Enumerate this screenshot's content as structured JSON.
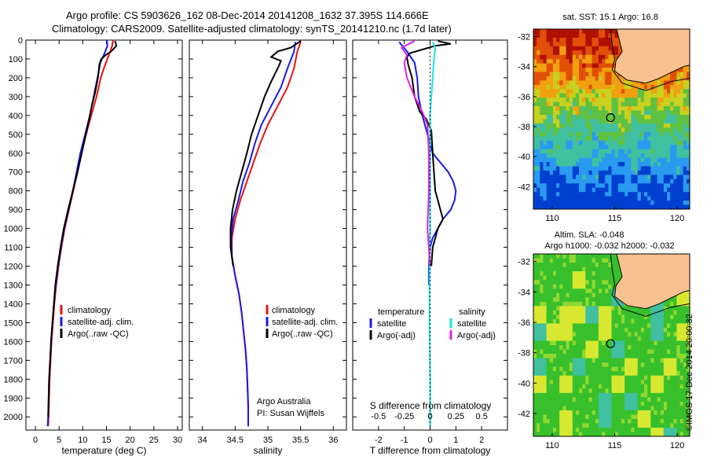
{
  "header": {
    "line1": "Argo profile: CS 5903626_162 08-Dec-2014 20141208_1632 37.395S 114.666E",
    "line2": "Climatology: CARS2009. Satellite-adjusted climatology: synTS_20141210.nc (1.7d later)"
  },
  "stamp": "©IMOS 17-Dec-2014 20:00:32",
  "colors": {
    "climatology": "#e81010",
    "satellite": "#1a1ae6",
    "argo": "#000000",
    "sat_salinity": "#18e6e6",
    "argo_salinity": "#e020e0",
    "land": "#f7c28f"
  },
  "chart_data": [
    {
      "type": "line",
      "id": "temperature",
      "xlabel": "temperature (deg C)",
      "xlim": [
        -2,
        31
      ],
      "ylim": [
        2070,
        0
      ],
      "xticks": [
        "0",
        "5",
        "10",
        "15",
        "20",
        "25",
        "30"
      ],
      "yticks": [
        "0",
        "100",
        "200",
        "300",
        "400",
        "500",
        "600",
        "700",
        "800",
        "900",
        "1000",
        "1100",
        "1200",
        "1300",
        "1400",
        "1500",
        "1600",
        "1700",
        "1800",
        "1900",
        "2000"
      ],
      "legend": [
        "climatology",
        "satellite-adj. clim.",
        "Argo(..raw -QC)"
      ],
      "series": [
        {
          "name": "climatology",
          "color": "climatology",
          "points": [
            [
              16.4,
              0
            ],
            [
              16.2,
              30
            ],
            [
              15.8,
              60
            ],
            [
              15.2,
              100
            ],
            [
              14.6,
              140
            ],
            [
              13.8,
              200
            ],
            [
              12.9,
              300
            ],
            [
              11.8,
              400
            ],
            [
              10.7,
              500
            ],
            [
              9.7,
              600
            ],
            [
              8.9,
              700
            ],
            [
              8.0,
              800
            ],
            [
              7.1,
              900
            ],
            [
              6.2,
              1000
            ],
            [
              5.5,
              1100
            ],
            [
              4.9,
              1200
            ],
            [
              4.4,
              1300
            ],
            [
              4.0,
              1400
            ],
            [
              3.7,
              1500
            ],
            [
              3.4,
              1600
            ],
            [
              3.2,
              1700
            ],
            [
              3.0,
              1800
            ],
            [
              2.9,
              1900
            ],
            [
              2.8,
              2000
            ],
            [
              2.7,
              2050
            ]
          ]
        },
        {
          "name": "satellite-adj. clim.",
          "color": "satellite",
          "points": [
            [
              15.1,
              0
            ],
            [
              15.2,
              30
            ],
            [
              14.6,
              70
            ],
            [
              13.7,
              120
            ],
            [
              13.1,
              200
            ],
            [
              12.3,
              300
            ],
            [
              11.5,
              400
            ],
            [
              10.5,
              500
            ],
            [
              9.5,
              600
            ],
            [
              8.7,
              700
            ],
            [
              7.9,
              800
            ],
            [
              7.0,
              900
            ],
            [
              6.1,
              1000
            ],
            [
              5.4,
              1100
            ],
            [
              4.8,
              1200
            ],
            [
              4.3,
              1300
            ],
            [
              3.9,
              1400
            ],
            [
              3.6,
              1500
            ],
            [
              3.3,
              1600
            ],
            [
              3.1,
              1700
            ],
            [
              2.9,
              1800
            ],
            [
              2.8,
              1900
            ],
            [
              2.7,
              2000
            ],
            [
              2.6,
              2050
            ]
          ]
        },
        {
          "name": "Argo(..raw -QC)",
          "color": "argo",
          "points": [
            [
              16.8,
              5
            ],
            [
              17.1,
              30
            ],
            [
              16.0,
              60
            ],
            [
              14.8,
              80
            ],
            [
              13.9,
              100
            ],
            [
              13.5,
              130
            ],
            [
              13.2,
              200
            ],
            [
              12.6,
              280
            ],
            [
              11.9,
              350
            ],
            [
              11.1,
              450
            ],
            [
              10.3,
              540
            ],
            [
              9.6,
              620
            ],
            [
              8.9,
              700
            ],
            [
              7.9,
              800
            ],
            [
              6.9,
              900
            ],
            [
              6.0,
              1000
            ],
            [
              5.3,
              1100
            ],
            [
              4.7,
              1200
            ],
            [
              4.2,
              1300
            ],
            [
              3.9,
              1400
            ],
            [
              3.6,
              1500
            ],
            [
              3.3,
              1600
            ],
            [
              3.1,
              1700
            ],
            [
              2.9,
              1800
            ],
            [
              2.8,
              1900
            ],
            [
              2.7,
              2000
            ]
          ]
        }
      ]
    },
    {
      "type": "line",
      "id": "salinity",
      "xlabel": "salinity",
      "xlim": [
        33.8,
        36.2
      ],
      "ylim": [
        2070,
        0
      ],
      "xticks": [
        "34",
        "34.5",
        "35",
        "35.5",
        "36"
      ],
      "legend": [
        "climatology",
        "satellite-adj. clim.",
        "Argo(..raw -QC)"
      ],
      "annotation": [
        "Argo Australia",
        "PI: Susan Wijffels"
      ],
      "series": [
        {
          "name": "climatology",
          "color": "climatology",
          "points": [
            [
              35.5,
              10
            ],
            [
              35.45,
              60
            ],
            [
              35.4,
              150
            ],
            [
              35.3,
              250
            ],
            [
              35.15,
              350
            ],
            [
              35.0,
              450
            ],
            [
              34.88,
              550
            ],
            [
              34.78,
              650
            ],
            [
              34.68,
              750
            ],
            [
              34.58,
              850
            ],
            [
              34.5,
              950
            ],
            [
              34.45,
              1050
            ],
            [
              34.45,
              1150
            ],
            [
              34.5,
              1250
            ],
            [
              34.56,
              1350
            ],
            [
              34.6,
              1450
            ],
            [
              34.63,
              1550
            ],
            [
              34.66,
              1650
            ],
            [
              34.68,
              1750
            ],
            [
              34.69,
              1850
            ],
            [
              34.7,
              1950
            ],
            [
              34.7,
              2050
            ]
          ]
        },
        {
          "name": "satellite-adj. clim.",
          "color": "satellite",
          "points": [
            [
              35.42,
              10
            ],
            [
              35.4,
              60
            ],
            [
              35.3,
              150
            ],
            [
              35.2,
              250
            ],
            [
              35.05,
              350
            ],
            [
              34.9,
              450
            ],
            [
              34.8,
              550
            ],
            [
              34.72,
              650
            ],
            [
              34.62,
              750
            ],
            [
              34.55,
              850
            ],
            [
              34.47,
              950
            ],
            [
              34.44,
              1050
            ],
            [
              34.45,
              1150
            ],
            [
              34.5,
              1250
            ],
            [
              34.56,
              1350
            ],
            [
              34.6,
              1450
            ],
            [
              34.63,
              1550
            ],
            [
              34.66,
              1650
            ],
            [
              34.68,
              1750
            ],
            [
              34.69,
              1850
            ],
            [
              34.7,
              1950
            ],
            [
              34.7,
              2050
            ]
          ]
        },
        {
          "name": "Argo(..raw -QC)",
          "color": "argo",
          "points": [
            [
              35.5,
              5
            ],
            [
              35.35,
              40
            ],
            [
              35.15,
              60
            ],
            [
              35.05,
              90
            ],
            [
              35.2,
              110
            ],
            [
              35.15,
              150
            ],
            [
              35.05,
              220
            ],
            [
              34.95,
              300
            ],
            [
              34.85,
              400
            ],
            [
              34.75,
              500
            ],
            [
              34.68,
              600
            ],
            [
              34.6,
              700
            ],
            [
              34.52,
              800
            ],
            [
              34.46,
              900
            ],
            [
              34.43,
              1000
            ],
            [
              34.43,
              1100
            ],
            [
              34.47,
              1200
            ]
          ]
        }
      ]
    },
    {
      "type": "line",
      "id": "difference",
      "xlabel": "T difference from climatology",
      "xlabel2": "S difference from climatology",
      "xlim": [
        -3,
        3
      ],
      "ylim": [
        2070,
        0
      ],
      "xticks": [
        "-2",
        "-1",
        "0",
        "1",
        "2"
      ],
      "xticks2": [
        "-0.5",
        "-0.25",
        "0",
        "0.25",
        "0.5"
      ],
      "legend_titles": [
        "temperature",
        "salinity"
      ],
      "legend": [
        "satellite",
        "Argo(-adj)",
        "satellite",
        "Argo(-adj)"
      ],
      "series": [
        {
          "name": "temperature satellite",
          "color": "satellite",
          "points": [
            [
              -1.2,
              10
            ],
            [
              -0.9,
              60
            ],
            [
              -0.6,
              120
            ],
            [
              -0.5,
              200
            ],
            [
              -0.45,
              300
            ],
            [
              -0.3,
              400
            ],
            [
              -0.1,
              500
            ],
            [
              0.1,
              600
            ],
            [
              0.4,
              650
            ],
            [
              0.7,
              700
            ],
            [
              0.9,
              750
            ],
            [
              1.0,
              800
            ],
            [
              0.95,
              850
            ],
            [
              0.8,
              900
            ],
            [
              0.5,
              950
            ],
            [
              0.3,
              1000
            ],
            [
              0.1,
              1050
            ],
            [
              0.0,
              1100
            ],
            [
              -0.05,
              1200
            ],
            [
              -0.05,
              1300
            ]
          ]
        },
        {
          "name": "temperature Argo(-adj)",
          "color": "argo",
          "points": [
            [
              0.3,
              5
            ],
            [
              0.8,
              20
            ],
            [
              0.2,
              30
            ],
            [
              -0.3,
              50
            ],
            [
              -0.8,
              70
            ],
            [
              -0.9,
              90
            ],
            [
              -0.85,
              130
            ],
            [
              -0.7,
              200
            ],
            [
              -0.6,
              300
            ],
            [
              -0.4,
              380
            ],
            [
              -0.15,
              420
            ],
            [
              0.05,
              480
            ],
            [
              0.1,
              600
            ],
            [
              0.15,
              700
            ],
            [
              0.2,
              800
            ],
            [
              0.4,
              900
            ],
            [
              0.5,
              950
            ],
            [
              0.3,
              1000
            ],
            [
              0.2,
              1050
            ],
            [
              0.1,
              1100
            ],
            [
              0.05,
              1200
            ]
          ]
        },
        {
          "name": "salinity satellite",
          "color": "sat_salinity",
          "points": [
            [
              0.1,
              10
            ],
            [
              0.2,
              40
            ],
            [
              0.15,
              100
            ],
            [
              0.1,
              200
            ],
            [
              0.05,
              300
            ],
            [
              0.0,
              400
            ],
            [
              0.0,
              600
            ],
            [
              0.0,
              1000
            ],
            [
              -0.02,
              1200
            ],
            [
              -0.02,
              1500
            ],
            [
              0.0,
              1800
            ],
            [
              0.0,
              2050
            ]
          ]
        },
        {
          "name": "salinity Argo(-adj)",
          "color": "argo_salinity",
          "points": [
            [
              -0.6,
              5
            ],
            [
              -1.1,
              40
            ],
            [
              -0.9,
              80
            ],
            [
              -1.0,
              120
            ],
            [
              -0.9,
              200
            ],
            [
              -0.6,
              300
            ],
            [
              -0.3,
              380
            ],
            [
              -0.1,
              450
            ],
            [
              -0.05,
              600
            ],
            [
              -0.05,
              800
            ],
            [
              -0.1,
              1000
            ],
            [
              -0.05,
              1100
            ],
            [
              0.0,
              1200
            ]
          ]
        }
      ]
    },
    {
      "type": "heatmap",
      "id": "sst_map",
      "title": "sat. SST: 15.1  Argo: 16.8",
      "xticks": [
        "110",
        "115",
        "120"
      ],
      "yticks": [
        "-32",
        "-34",
        "-36",
        "-38",
        "-40",
        "-42"
      ],
      "xlim": [
        108.5,
        121
      ],
      "ylim": [
        -43.5,
        -31.5
      ],
      "marker": [
        114.67,
        -37.4
      ]
    },
    {
      "type": "heatmap",
      "id": "sla_map",
      "title": "Altim. SLA: -0.048",
      "subtitle": "Argo h1000: -0.032 h2000: -0.032",
      "xticks": [
        "110",
        "115",
        "120"
      ],
      "yticks": [
        "-32",
        "-34",
        "-36",
        "-38",
        "-40",
        "-42"
      ],
      "xlim": [
        108.5,
        121
      ],
      "ylim": [
        -43.5,
        -31.5
      ],
      "marker": [
        114.67,
        -37.4
      ]
    }
  ]
}
